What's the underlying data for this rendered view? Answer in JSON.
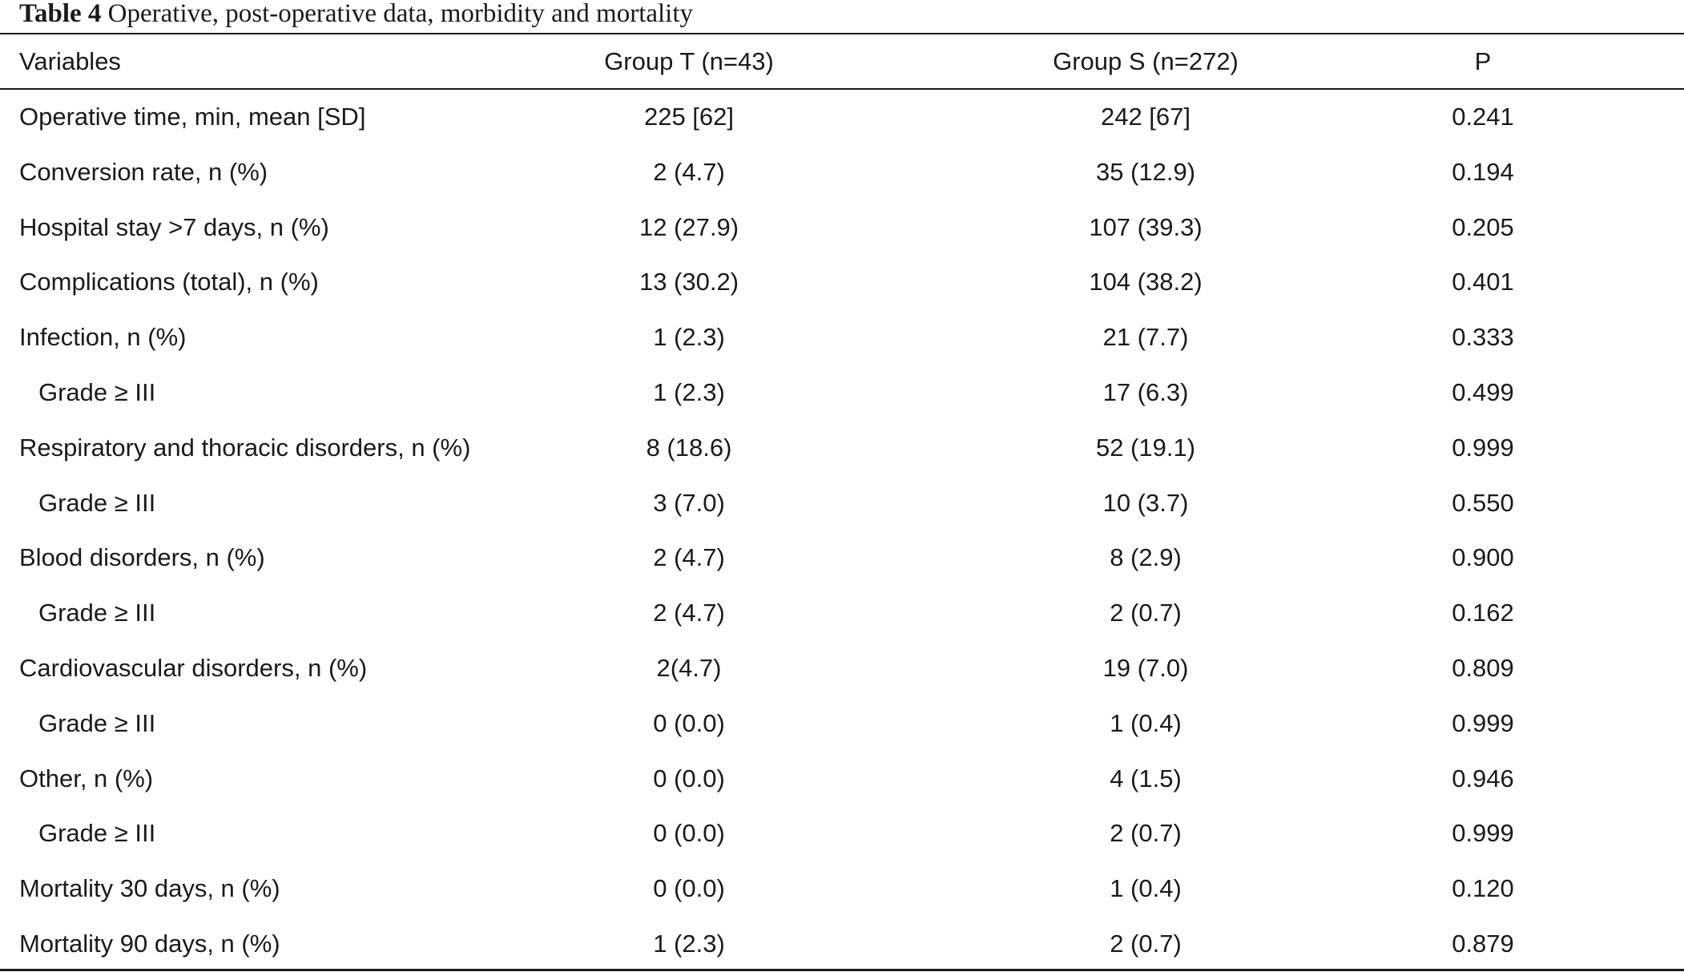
{
  "caption": {
    "label": "Table 4",
    "text": "Operative, post-operative data, morbidity and mortality"
  },
  "table": {
    "headers": [
      "Variables",
      "Group T (n=43)",
      "Group S (n=272)",
      "P"
    ],
    "rows": [
      {
        "variable": "Operative time, min, mean [SD]",
        "group_t": "225 [62]",
        "group_s": "242 [67]",
        "p": "0.241",
        "indent": false
      },
      {
        "variable": "Conversion rate, n (%)",
        "group_t": "2 (4.7)",
        "group_s": "35 (12.9)",
        "p": "0.194",
        "indent": false
      },
      {
        "variable": "Hospital stay >7 days, n (%)",
        "group_t": "12 (27.9)",
        "group_s": "107 (39.3)",
        "p": "0.205",
        "indent": false
      },
      {
        "variable": "Complications (total), n (%)",
        "group_t": "13 (30.2)",
        "group_s": "104 (38.2)",
        "p": "0.401",
        "indent": false
      },
      {
        "variable": "Infection, n (%)",
        "group_t": "1 (2.3)",
        "group_s": "21 (7.7)",
        "p": "0.333",
        "indent": false
      },
      {
        "variable": "Grade ≥ III",
        "group_t": "1 (2.3)",
        "group_s": "17 (6.3)",
        "p": "0.499",
        "indent": true
      },
      {
        "variable": "Respiratory and thoracic disorders, n (%)",
        "group_t": "8 (18.6)",
        "group_s": "52 (19.1)",
        "p": "0.999",
        "indent": false
      },
      {
        "variable": "Grade ≥ III",
        "group_t": "3 (7.0)",
        "group_s": "10 (3.7)",
        "p": "0.550",
        "indent": true
      },
      {
        "variable": "Blood disorders, n (%)",
        "group_t": "2 (4.7)",
        "group_s": "8 (2.9)",
        "p": "0.900",
        "indent": false
      },
      {
        "variable": "Grade ≥ III",
        "group_t": "2 (4.7)",
        "group_s": "2 (0.7)",
        "p": "0.162",
        "indent": true
      },
      {
        "variable": "Cardiovascular disorders, n (%)",
        "group_t": "2(4.7)",
        "group_s": "19 (7.0)",
        "p": "0.809",
        "indent": false
      },
      {
        "variable": "Grade ≥ III",
        "group_t": "0 (0.0)",
        "group_s": "1 (0.4)",
        "p": "0.999",
        "indent": true
      },
      {
        "variable": "Other, n (%)",
        "group_t": "0 (0.0)",
        "group_s": "4 (1.5)",
        "p": "0.946",
        "indent": false
      },
      {
        "variable": "Grade ≥ III",
        "group_t": "0 (0.0)",
        "group_s": "2 (0.7)",
        "p": "0.999",
        "indent": true
      },
      {
        "variable": "Mortality 30 days, n (%)",
        "group_t": "0 (0.0)",
        "group_s": "1 (0.4)",
        "p": "0.120",
        "indent": false
      },
      {
        "variable": "Mortality 90 days, n (%)",
        "group_t": "1 (2.3)",
        "group_s": "2 (0.7)",
        "p": "0.879",
        "indent": false
      }
    ]
  }
}
